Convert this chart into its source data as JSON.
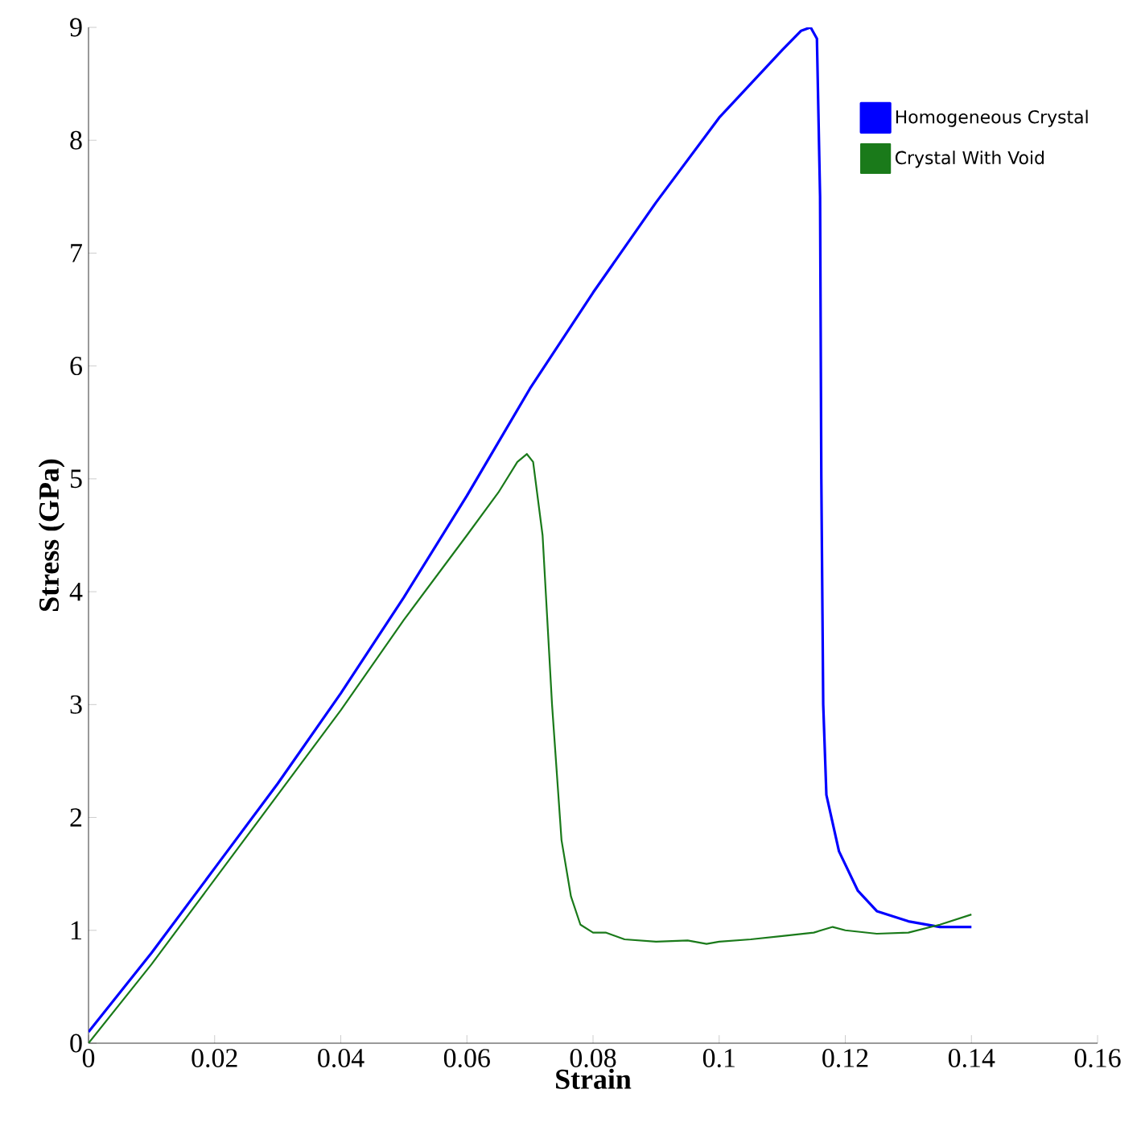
{
  "chart_data": {
    "type": "line",
    "xlabel": "Strain",
    "ylabel": "Stress (GPa)",
    "x": [
      0,
      0.01,
      0.02,
      0.03,
      0.04,
      0.05,
      0.06,
      0.07,
      0.08,
      0.09,
      0.1,
      0.11,
      0.113,
      0.1145,
      0.1155,
      0.116,
      0.1162,
      0.1165,
      0.117,
      0.119,
      0.122,
      0.125,
      0.13,
      0.135,
      0.14
    ],
    "series": [
      {
        "name": "Homogeneous Crystal",
        "color": "#0000ff",
        "values": [
          0.1,
          0.8,
          1.55,
          2.3,
          3.1,
          3.95,
          4.85,
          5.8,
          6.65,
          7.45,
          8.2,
          8.8,
          8.97,
          9.0,
          8.9,
          7.5,
          5.0,
          3.0,
          2.2,
          1.7,
          1.35,
          1.17,
          1.08,
          1.03,
          1.03
        ]
      },
      {
        "name": "Crystal With Void",
        "color": "#1a7a1a",
        "x": [
          0,
          0.01,
          0.02,
          0.03,
          0.04,
          0.05,
          0.06,
          0.065,
          0.068,
          0.0695,
          0.0705,
          0.072,
          0.0735,
          0.075,
          0.0765,
          0.078,
          0.08,
          0.082,
          0.085,
          0.09,
          0.095,
          0.098,
          0.1,
          0.105,
          0.11,
          0.115,
          0.118,
          0.12,
          0.125,
          0.13,
          0.135,
          0.14
        ],
        "values": [
          0,
          0.7,
          1.45,
          2.2,
          2.95,
          3.75,
          4.5,
          4.88,
          5.15,
          5.22,
          5.15,
          4.5,
          3.0,
          1.8,
          1.3,
          1.05,
          0.98,
          0.98,
          0.92,
          0.9,
          0.91,
          0.88,
          0.9,
          0.92,
          0.95,
          0.98,
          1.03,
          1.0,
          0.97,
          0.98,
          1.05,
          1.14
        ]
      }
    ],
    "xlim": [
      0,
      0.16
    ],
    "ylim": [
      0,
      9
    ],
    "xticks": [
      0,
      0.02,
      0.04,
      0.06,
      0.08,
      0.1,
      0.12,
      0.14,
      0.16
    ],
    "yticks": [
      0,
      1,
      2,
      3,
      4,
      5,
      6,
      7,
      8,
      9
    ],
    "legend": "top right",
    "grid": false
  }
}
